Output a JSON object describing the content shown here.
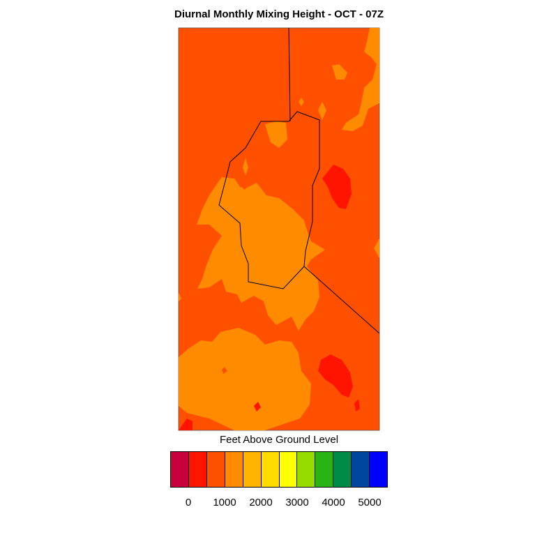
{
  "title": "Diurnal Monthly Mixing Height - OCT - 07Z",
  "legend": {
    "title": "Feet Above Ground Level",
    "colors": [
      "#c8003c",
      "#ff1400",
      "#ff5000",
      "#ff8c00",
      "#ffb400",
      "#ffdc00",
      "#ffff00",
      "#96dc00",
      "#28b414",
      "#008c46",
      "#0046a0",
      "#0000ff"
    ],
    "tick_labels": [
      "0",
      "1000",
      "2000",
      "3000",
      "4000",
      "5000"
    ]
  },
  "map": {
    "background_color": "#ff5000",
    "region_colors": {
      "orange": "#ff8c00",
      "red": "#ff1400"
    },
    "boundary_color": "#000000"
  }
}
